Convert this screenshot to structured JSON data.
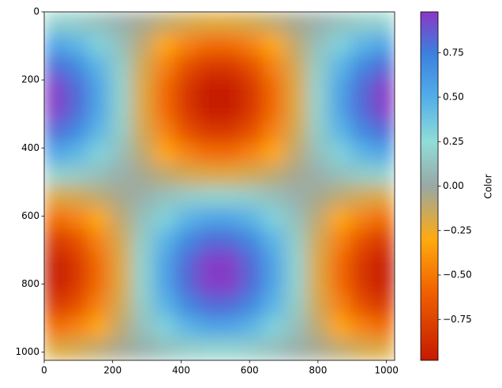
{
  "chart_data": {
    "type": "heatmap",
    "colorbar_label": "Color",
    "x_edges": [
      0,
      64,
      128,
      192,
      256,
      320,
      384,
      448,
      512,
      576,
      640,
      704,
      768,
      832,
      896,
      960,
      1024
    ],
    "y_edges": [
      0,
      64,
      128,
      192,
      256,
      320,
      384,
      448,
      512,
      576,
      640,
      704,
      768,
      832,
      896,
      960,
      1024
    ],
    "values": [
      [
        0.2,
        0.17,
        0.11,
        0.04,
        -0.04,
        -0.11,
        -0.17,
        -0.2,
        -0.2,
        -0.17,
        -0.11,
        -0.04,
        0.04,
        0.11,
        0.17,
        0.2
      ],
      [
        0.55,
        0.46,
        0.31,
        0.11,
        -0.11,
        -0.31,
        -0.46,
        -0.55,
        -0.55,
        -0.46,
        -0.31,
        -0.11,
        0.11,
        0.31,
        0.46,
        0.55
      ],
      [
        0.81,
        0.69,
        0.46,
        0.17,
        -0.17,
        -0.46,
        -0.69,
        -0.81,
        -0.81,
        -0.69,
        -0.46,
        -0.17,
        0.17,
        0.46,
        0.69,
        0.81
      ],
      [
        0.96,
        0.81,
        0.55,
        0.2,
        -0.2,
        -0.55,
        -0.81,
        -0.96,
        -0.96,
        -0.81,
        -0.55,
        -0.2,
        0.2,
        0.55,
        0.81,
        0.96
      ],
      [
        0.96,
        0.81,
        0.55,
        0.2,
        -0.2,
        -0.55,
        -0.81,
        -0.96,
        -0.96,
        -0.81,
        -0.55,
        -0.2,
        0.2,
        0.55,
        0.81,
        0.96
      ],
      [
        0.81,
        0.69,
        0.46,
        0.17,
        -0.17,
        -0.46,
        -0.69,
        -0.81,
        -0.81,
        -0.69,
        -0.46,
        -0.17,
        0.17,
        0.46,
        0.69,
        0.81
      ],
      [
        0.55,
        0.46,
        0.31,
        0.11,
        -0.11,
        -0.31,
        -0.46,
        -0.55,
        -0.55,
        -0.46,
        -0.31,
        -0.11,
        0.11,
        0.31,
        0.46,
        0.55
      ],
      [
        0.2,
        0.17,
        0.11,
        0.04,
        -0.04,
        -0.11,
        -0.17,
        -0.2,
        -0.2,
        -0.17,
        -0.11,
        -0.04,
        0.04,
        0.11,
        0.17,
        0.2
      ],
      [
        -0.2,
        -0.17,
        -0.11,
        -0.04,
        0.04,
        0.11,
        0.17,
        0.2,
        0.2,
        0.17,
        0.11,
        0.04,
        -0.04,
        -0.11,
        -0.17,
        -0.2
      ],
      [
        -0.55,
        -0.46,
        -0.31,
        -0.11,
        0.11,
        0.31,
        0.46,
        0.55,
        0.55,
        0.46,
        0.31,
        0.11,
        -0.11,
        -0.31,
        -0.46,
        -0.55
      ],
      [
        -0.81,
        -0.69,
        -0.46,
        -0.17,
        0.17,
        0.46,
        0.69,
        0.81,
        0.81,
        0.69,
        0.46,
        0.17,
        -0.17,
        -0.46,
        -0.69,
        -0.81
      ],
      [
        -0.96,
        -0.81,
        -0.55,
        -0.2,
        0.2,
        0.55,
        0.81,
        0.96,
        0.96,
        0.81,
        0.55,
        0.2,
        -0.2,
        -0.55,
        -0.81,
        -0.96
      ],
      [
        -0.96,
        -0.81,
        -0.55,
        -0.2,
        0.2,
        0.55,
        0.81,
        0.96,
        0.96,
        0.81,
        0.55,
        0.2,
        -0.2,
        -0.55,
        -0.81,
        -0.96
      ],
      [
        -0.81,
        -0.69,
        -0.46,
        -0.17,
        0.17,
        0.46,
        0.69,
        0.81,
        0.81,
        0.69,
        0.46,
        0.17,
        -0.17,
        -0.46,
        -0.69,
        -0.81
      ],
      [
        -0.55,
        -0.46,
        -0.31,
        -0.11,
        0.11,
        0.31,
        0.46,
        0.55,
        0.55,
        0.46,
        0.31,
        0.11,
        -0.11,
        -0.31,
        -0.46,
        -0.55
      ],
      [
        -0.2,
        -0.17,
        -0.11,
        -0.04,
        0.04,
        0.11,
        0.17,
        0.2,
        0.2,
        0.17,
        0.11,
        0.04,
        -0.04,
        -0.11,
        -0.17,
        -0.2
      ]
    ],
    "xlim": [
      0,
      1024
    ],
    "ylim": [
      0,
      1024
    ],
    "y_inverted": true,
    "xticks": [
      0,
      200,
      400,
      600,
      800,
      1000
    ],
    "yticks": [
      0,
      200,
      400,
      600,
      800,
      1000
    ],
    "zlim": [
      -0.98,
      0.98
    ],
    "zticks": [
      {
        "value": -0.75,
        "label": "−0.75"
      },
      {
        "value": -0.5,
        "label": "−0.50"
      },
      {
        "value": -0.25,
        "label": "−0.25"
      },
      {
        "value": 0,
        "label": "0.00"
      },
      {
        "value": 0.25,
        "label": "0.25"
      },
      {
        "value": 0.5,
        "label": "0.50"
      },
      {
        "value": 0.75,
        "label": "0.75"
      }
    ],
    "colorscale": [
      [
        -0.98,
        "#c41a00"
      ],
      [
        -0.6,
        "#f06000"
      ],
      [
        -0.3,
        "#ffaa10"
      ],
      [
        0,
        "#98a8a4"
      ],
      [
        0.25,
        "#90ddd8"
      ],
      [
        0.5,
        "#52aee8"
      ],
      [
        0.75,
        "#3c7fdf"
      ],
      [
        0.98,
        "#8a38c6"
      ]
    ]
  }
}
